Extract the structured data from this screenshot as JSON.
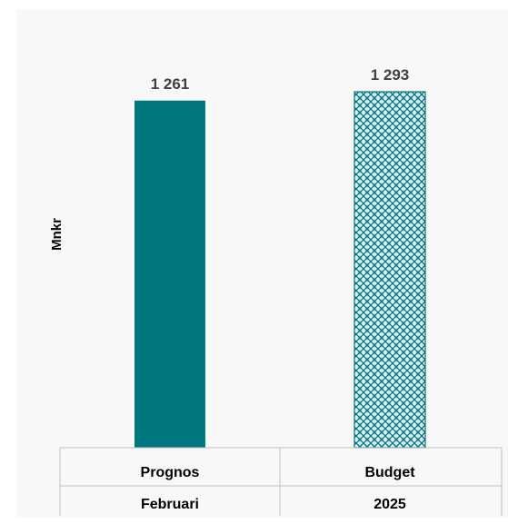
{
  "chart_data": {
    "type": "bar",
    "title": "",
    "xlabel": "",
    "ylabel": "Mnkr",
    "ylim": [
      0,
      1600
    ],
    "grid": false,
    "legend": "none",
    "categories": [
      {
        "line1": "Prognos",
        "line2": "Februari"
      },
      {
        "line1": "Budget",
        "line2": "2025"
      }
    ],
    "values": [
      1261,
      1293
    ],
    "value_labels": [
      "1 261",
      "1 293"
    ],
    "bar_styles": [
      "solid",
      "crosshatch"
    ],
    "colors": {
      "bar_fill": "#00777f",
      "hatch": "#00777f",
      "hatch_background": "#ffffff",
      "data_label": "#404040",
      "table_border": "#bfbfbf"
    }
  }
}
